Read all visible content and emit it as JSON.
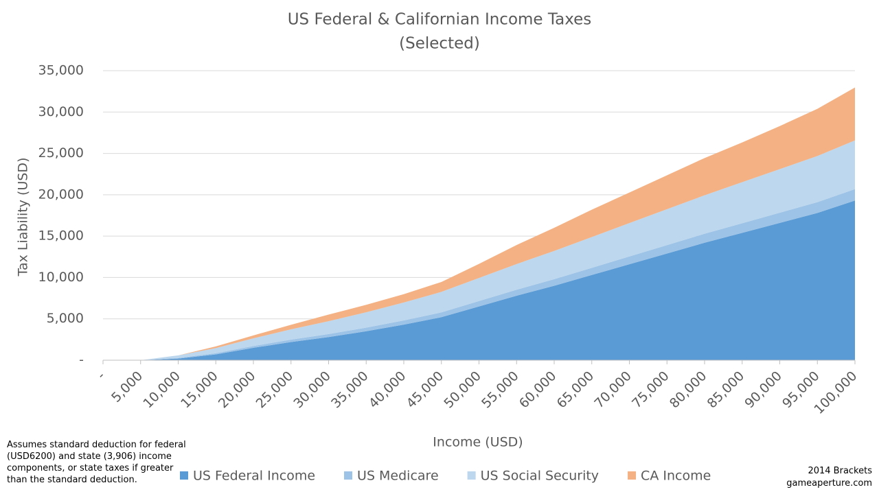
{
  "chart_data": {
    "type": "stacked_area",
    "title": "US Federal & Californian Income Taxes",
    "subtitle": "(Selected)",
    "x_label": "Income (USD)",
    "y_label": "Tax Liability (USD)",
    "note": "Assumes standard deduction for federal (USD6200) and state (3,906) income components,  or state taxes if greater than the  standard deduction.",
    "credit": [
      "2014 Brackets",
      "gameaperture.com"
    ],
    "x": [
      0,
      5000,
      10000,
      15000,
      20000,
      25000,
      30000,
      35000,
      40000,
      45000,
      50000,
      55000,
      60000,
      65000,
      70000,
      75000,
      80000,
      85000,
      90000,
      95000,
      100000
    ],
    "xlim": [
      0,
      100000
    ],
    "xticks": [
      {
        "value": 0,
        "label": "-"
      },
      {
        "value": 5000,
        "label": "5,000"
      },
      {
        "value": 10000,
        "label": "10,000"
      },
      {
        "value": 15000,
        "label": "15,000"
      },
      {
        "value": 20000,
        "label": "20,000"
      },
      {
        "value": 25000,
        "label": "25,000"
      },
      {
        "value": 30000,
        "label": "30,000"
      },
      {
        "value": 35000,
        "label": "35,000"
      },
      {
        "value": 40000,
        "label": "40,000"
      },
      {
        "value": 45000,
        "label": "45,000"
      },
      {
        "value": 50000,
        "label": "50,000"
      },
      {
        "value": 55000,
        "label": "55,000"
      },
      {
        "value": 60000,
        "label": "60,000"
      },
      {
        "value": 65000,
        "label": "65,000"
      },
      {
        "value": 70000,
        "label": "70,000"
      },
      {
        "value": 75000,
        "label": "75,000"
      },
      {
        "value": 80000,
        "label": "80,000"
      },
      {
        "value": 85000,
        "label": "85,000"
      },
      {
        "value": 90000,
        "label": "90,000"
      },
      {
        "value": 95000,
        "label": "95,000"
      },
      {
        "value": 100000,
        "label": "100,000"
      }
    ],
    "ylim": [
      0,
      35000
    ],
    "yticks": [
      {
        "value": 0,
        "label": "-"
      },
      {
        "value": 5000,
        "label": "5,000"
      },
      {
        "value": 10000,
        "label": "10,000"
      },
      {
        "value": 15000,
        "label": "15,000"
      },
      {
        "value": 20000,
        "label": "20,000"
      },
      {
        "value": 25000,
        "label": "25,000"
      },
      {
        "value": 30000,
        "label": "30,000"
      },
      {
        "value": 35000,
        "label": "35,000"
      }
    ],
    "grid": true,
    "legend": "bottom",
    "series": [
      {
        "name": "US Federal Income",
        "color": "#5b9bd5",
        "values": [
          0,
          0,
          200,
          700,
          1500,
          2200,
          2800,
          3500,
          4300,
          5200,
          6500,
          7800,
          9000,
          10300,
          11600,
          12900,
          14200,
          15400,
          16600,
          17800,
          19300
        ]
      },
      {
        "name": "US Medicare",
        "color": "#9dc3e6",
        "values": [
          0,
          0,
          73,
          145,
          218,
          290,
          363,
          435,
          508,
          580,
          653,
          725,
          798,
          870,
          943,
          1015,
          1088,
          1160,
          1233,
          1305,
          1378
        ]
      },
      {
        "name": "US Social Security",
        "color": "#bdd7ee",
        "values": [
          0,
          0,
          310,
          620,
          930,
          1240,
          1550,
          1860,
          2170,
          2480,
          2790,
          3100,
          3410,
          3720,
          4030,
          4340,
          4650,
          4960,
          5270,
          5580,
          5890
        ]
      },
      {
        "name": "CA Income",
        "color": "#f4b183",
        "values": [
          0,
          0,
          0,
          200,
          350,
          550,
          800,
          900,
          1000,
          1200,
          1700,
          2300,
          2800,
          3300,
          3700,
          4100,
          4500,
          4800,
          5200,
          5700,
          6400
        ]
      }
    ]
  }
}
